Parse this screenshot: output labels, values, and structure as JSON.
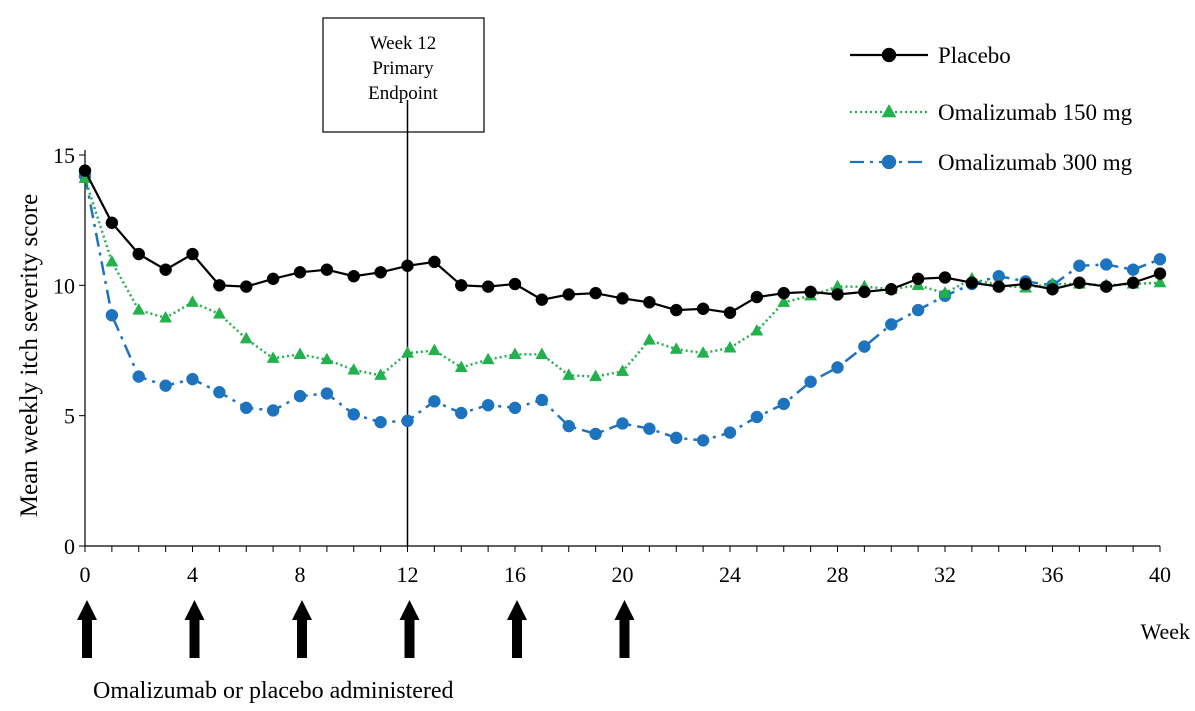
{
  "chart_data": {
    "type": "line",
    "title": "",
    "xlabel": "Week",
    "ylabel": "Mean weekly itch severity score",
    "xlim": [
      0,
      40
    ],
    "ylim": [
      0,
      15
    ],
    "x_ticks": [
      0,
      4,
      8,
      12,
      16,
      20,
      24,
      28,
      32,
      36,
      40
    ],
    "y_ticks": [
      0,
      5,
      10,
      15
    ],
    "grid": false,
    "legend_position": "top-right",
    "annotation": {
      "text_lines": [
        "Week 12",
        "Primary",
        "Endpoint"
      ],
      "x": 12
    },
    "administration_weeks": [
      0,
      4,
      8,
      12,
      16,
      20
    ],
    "administration_label": "Omalizumab or placebo administered",
    "series": [
      {
        "name": "Placebo",
        "color": "#000000",
        "marker": "circle",
        "line_style": "solid",
        "x": [
          0,
          1,
          2,
          3,
          4,
          5,
          6,
          7,
          8,
          9,
          10,
          11,
          12,
          13,
          14,
          15,
          16,
          17,
          18,
          19,
          20,
          21,
          22,
          23,
          24,
          25,
          26,
          27,
          28,
          29,
          30,
          31,
          32,
          33,
          34,
          35,
          36,
          37,
          38,
          39,
          40
        ],
        "y": [
          14.4,
          12.4,
          11.2,
          10.6,
          11.2,
          10.0,
          9.95,
          10.25,
          10.5,
          10.6,
          10.35,
          10.5,
          10.75,
          10.9,
          10.0,
          9.95,
          10.05,
          9.45,
          9.65,
          9.7,
          9.5,
          9.35,
          9.05,
          9.1,
          8.95,
          9.55,
          9.7,
          9.75,
          9.65,
          9.75,
          9.85,
          10.25,
          10.3,
          10.1,
          9.95,
          10.05,
          9.85,
          10.1,
          9.95,
          10.1,
          10.45
        ]
      },
      {
        "name": "Omalizumab 150 mg",
        "color": "#22b14c",
        "marker": "triangle",
        "line_style": "dotted",
        "x": [
          0,
          1,
          2,
          3,
          4,
          5,
          6,
          7,
          8,
          9,
          10,
          11,
          12,
          13,
          14,
          15,
          16,
          17,
          18,
          19,
          20,
          21,
          22,
          23,
          24,
          25,
          26,
          27,
          28,
          29,
          30,
          31,
          32,
          33,
          34,
          35,
          36,
          37,
          38,
          39,
          40
        ],
        "y": [
          14.1,
          10.9,
          9.05,
          8.75,
          9.35,
          8.9,
          7.95,
          7.2,
          7.35,
          7.15,
          6.75,
          6.55,
          7.4,
          7.5,
          6.85,
          7.15,
          7.35,
          7.35,
          6.55,
          6.5,
          6.7,
          7.9,
          7.55,
          7.4,
          7.6,
          8.25,
          9.35,
          9.6,
          9.95,
          9.95,
          9.85,
          10.0,
          9.7,
          10.25,
          10.0,
          9.9,
          10.05,
          10.05,
          10.0,
          10.05,
          10.1
        ]
      },
      {
        "name": "Omalizumab 300 mg",
        "color": "#1e73be",
        "marker": "circle",
        "line_style": "dash-dot",
        "x": [
          0,
          1,
          2,
          3,
          4,
          5,
          6,
          7,
          8,
          9,
          10,
          11,
          12,
          13,
          14,
          15,
          16,
          17,
          18,
          19,
          20,
          21,
          22,
          23,
          24,
          25,
          26,
          27,
          28,
          29,
          30,
          31,
          32,
          33,
          34,
          35,
          36,
          37,
          38,
          39,
          40
        ],
        "y": [
          14.2,
          8.85,
          6.5,
          6.15,
          6.4,
          5.9,
          5.3,
          5.2,
          5.75,
          5.85,
          5.05,
          4.75,
          4.8,
          5.55,
          5.1,
          5.4,
          5.3,
          5.6,
          4.6,
          4.3,
          4.7,
          4.5,
          4.15,
          4.05,
          4.35,
          4.95,
          5.45,
          6.3,
          6.85,
          7.65,
          8.5,
          9.05,
          9.6,
          10.05,
          10.35,
          10.15,
          10.0,
          10.75,
          10.8,
          10.6,
          11.0
        ]
      }
    ]
  }
}
